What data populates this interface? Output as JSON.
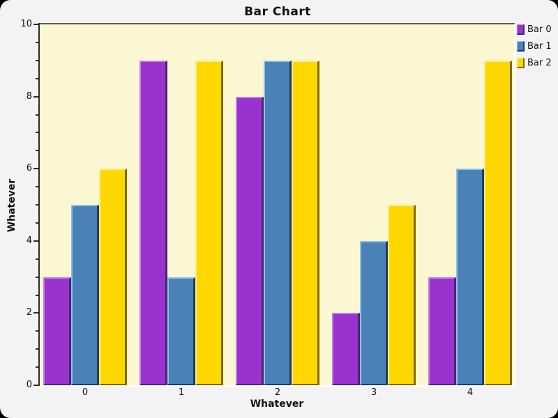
{
  "frame": {
    "outer_background": "#000000",
    "panel_background": "#F3F3F3"
  },
  "chart_data": {
    "type": "bar",
    "title": "Bar Chart",
    "xlabel": "Whatever",
    "ylabel": "Whatever",
    "categories": [
      "0",
      "1",
      "2",
      "3",
      "4"
    ],
    "series": [
      {
        "name": "Bar 0",
        "color": "#9A33CE",
        "light": "#C97BE6",
        "dark": "#48266B",
        "values": [
          3,
          9,
          8,
          2,
          3
        ]
      },
      {
        "name": "Bar 1",
        "color": "#4A82B8",
        "light": "#8DC0F0",
        "dark": "#1F3C5C",
        "values": [
          5,
          3,
          9,
          4,
          6
        ]
      },
      {
        "name": "Bar 2",
        "color": "#FFD700",
        "light": "#FFEC85",
        "dark": "#7D6C05",
        "values": [
          6,
          9,
          9,
          5,
          9
        ]
      }
    ],
    "ylim": [
      0,
      10
    ],
    "y_major_step": 2,
    "y_minor_step": 0.5,
    "y_major_tick_labels": [
      "0",
      "2",
      "4",
      "6",
      "8",
      "10"
    ],
    "grid": false,
    "legend_position": "top-right",
    "plot_background": "#FBF7D3",
    "plot_border_top_color": "#5e5e50",
    "axis_color": "#2e2e26"
  }
}
